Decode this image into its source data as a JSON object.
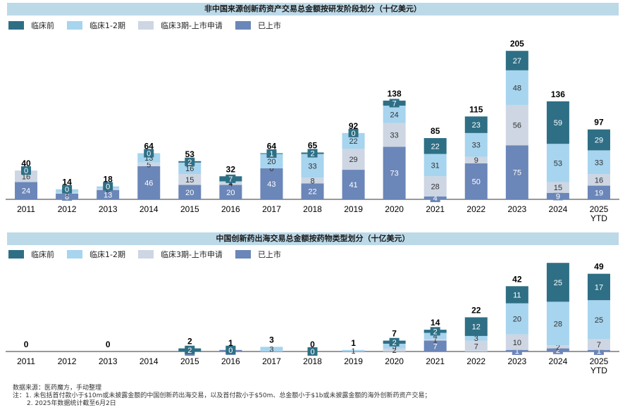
{
  "chart_data": [
    {
      "type": "bar",
      "title": "非中国来源创新药资产交易总金额按研发阶段划分（十亿美元）",
      "categories": [
        "2011",
        "2012",
        "2013",
        "2014",
        "2015",
        "2016",
        "2017",
        "2018",
        "2019",
        "2020",
        "2021",
        "2022",
        "2023",
        "2024",
        "2025\nYTD"
      ],
      "series": [
        {
          "name": "已上市",
          "color": "#6b86b8",
          "values": [
            24,
            8,
            13,
            46,
            20,
            20,
            43,
            22,
            41,
            73,
            4,
            50,
            75,
            9,
            19
          ]
        },
        {
          "name": "临床3期-上市申请",
          "color": "#cdd6e2",
          "values": [
            16,
            1,
            2,
            5,
            15,
            4,
            0,
            8,
            29,
            33,
            28,
            9,
            56,
            15,
            16
          ]
        },
        {
          "name": "临床1-2期",
          "color": "#a7d4ee",
          "values": [
            0,
            5,
            3,
            13,
            16,
            1,
            20,
            33,
            22,
            24,
            31,
            33,
            48,
            53,
            33
          ]
        },
        {
          "name": "临床前",
          "color": "#2e6f85",
          "values": [
            0,
            0,
            0,
            0,
            2,
            7,
            1,
            2,
            0,
            7,
            22,
            23,
            27,
            59,
            29
          ]
        }
      ],
      "totals": [
        40,
        14,
        18,
        64,
        53,
        32,
        64,
        65,
        92,
        138,
        85,
        115,
        205,
        136,
        97
      ],
      "ylim": [
        0,
        215
      ]
    },
    {
      "type": "bar",
      "title": "中国创新药出海交易总金额按药物类型划分（十亿美元）",
      "categories": [
        "2011",
        "2012",
        "2013",
        "2014",
        "2015",
        "2016",
        "2017",
        "2018",
        "2019",
        "2020",
        "2021",
        "2022",
        "2023",
        "2024",
        "2025\nYTD"
      ],
      "series": [
        {
          "name": "已上市",
          "color": "#6b86b8",
          "values": [
            null,
            null,
            null,
            null,
            0,
            1,
            null,
            0,
            null,
            null,
            7,
            null,
            1,
            2,
            1
          ]
        },
        {
          "name": "临床3期-上市申请",
          "color": "#cdd6e2",
          "values": [
            null,
            null,
            null,
            null,
            null,
            null,
            null,
            null,
            null,
            2,
            1,
            7,
            10,
            2,
            7
          ]
        },
        {
          "name": "临床1-2期",
          "color": "#a7d4ee",
          "values": [
            null,
            null,
            null,
            null,
            null,
            null,
            3,
            null,
            1,
            3,
            4,
            3,
            20,
            28,
            25
          ]
        },
        {
          "name": "临床前",
          "color": "#2e6f85",
          "values": [
            null,
            null,
            null,
            null,
            2,
            0,
            null,
            0,
            null,
            2,
            2,
            12,
            11,
            25,
            17
          ]
        }
      ],
      "totals": [
        0,
        null,
        0,
        null,
        2,
        1,
        3,
        0,
        1,
        7,
        14,
        22,
        42,
        56,
        49
      ],
      "ylim": [
        0,
        58
      ]
    }
  ],
  "legend": [
    {
      "label": "临床前",
      "color": "#2e6f85"
    },
    {
      "label": "临床1-2期",
      "color": "#a7d4ee"
    },
    {
      "label": "临床3期-上市申请",
      "color": "#cdd6e2"
    },
    {
      "label": "已上市",
      "color": "#6b86b8"
    }
  ],
  "notes": {
    "source": "数据来源：医药魔方，手动整理",
    "note1": "注：1. 未包括首付款小于$10m或未披露金额的中国创新药出海交易，以及首付款小于$50m、总金额小于$1b或未披露金额的海外创新药资产交易；",
    "note2": "2. 2025年数据统计截至6月2日"
  }
}
